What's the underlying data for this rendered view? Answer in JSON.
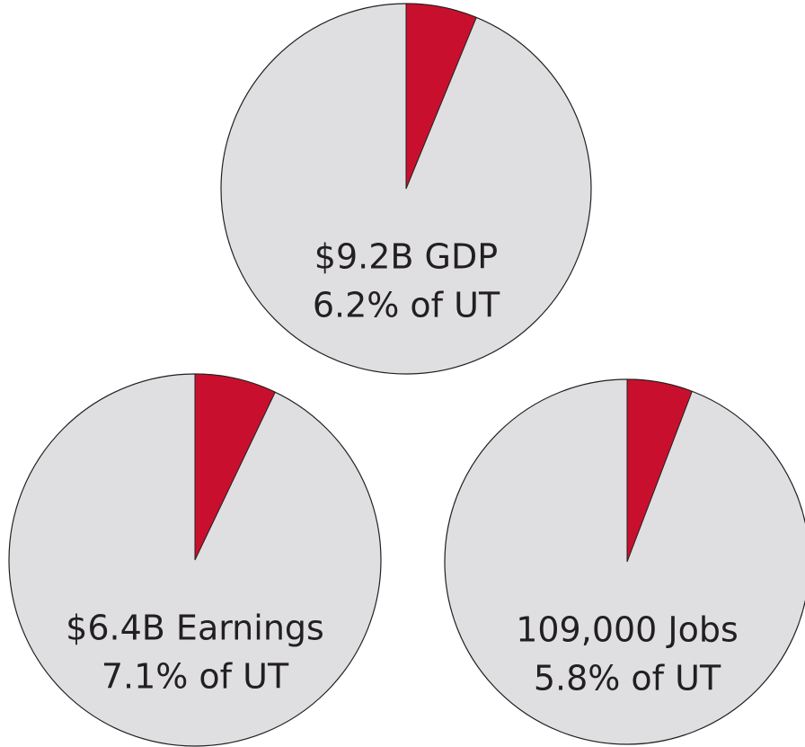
{
  "chart_data": [
    {
      "type": "pie",
      "title": "$9.2B GDP",
      "values": [
        6.2
      ],
      "value_labels": [
        "6.2% of UT"
      ],
      "color": "#c8102e",
      "background": "#dfdfe1"
    },
    {
      "type": "pie",
      "title": "$6.4B Earnings",
      "values": [
        7.1
      ],
      "value_labels": [
        "7.1% of UT"
      ],
      "color": "#c8102e",
      "background": "#dfdfe1"
    },
    {
      "type": "pie",
      "title": "109,000 Jobs",
      "values": [
        5.8
      ],
      "value_labels": [
        "5.8% of UT"
      ],
      "color": "#c8102e",
      "background": "#dfdfe1"
    }
  ]
}
